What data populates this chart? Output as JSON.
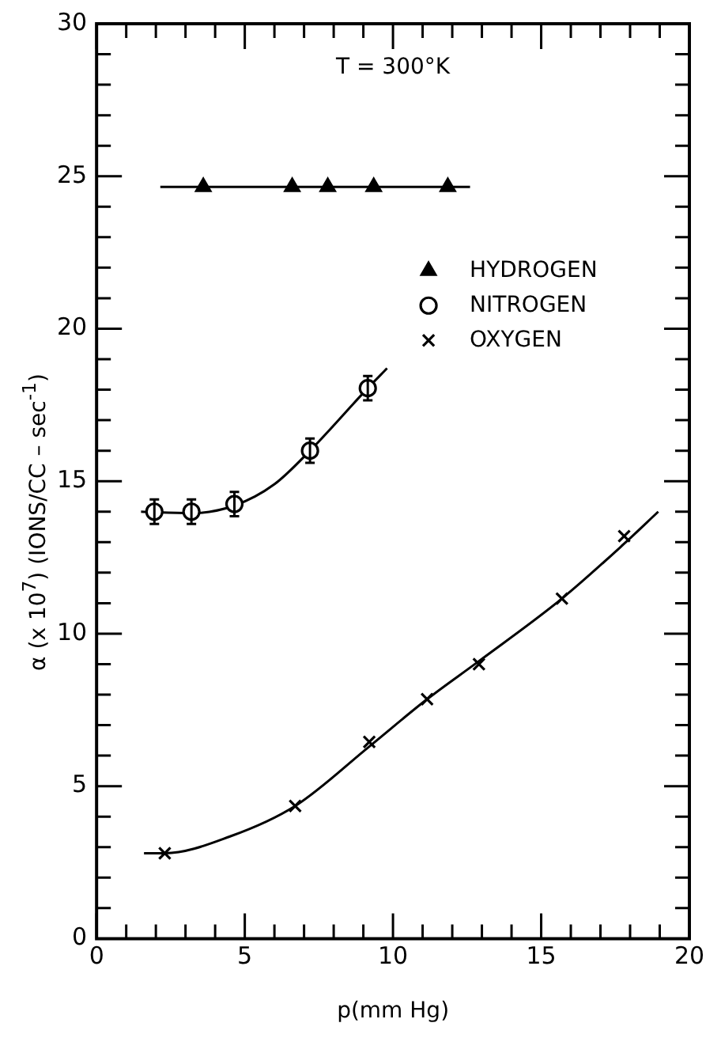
{
  "chart_data": {
    "type": "scatter",
    "xlabel": "p(mm Hg)",
    "ylabel": "α (x 10$^{7}$) (IONS/CC – sec$^{-1}$)",
    "annotations": [
      "T = 300°K"
    ],
    "xlim": [
      0,
      20
    ],
    "ylim": [
      0,
      30
    ],
    "xticks": [
      0,
      {
        "value": 1,
        "label": null
      },
      {
        "value": 2,
        "label": null
      },
      {
        "value": 3,
        "label": null
      },
      {
        "value": 4,
        "label": null
      },
      5,
      {
        "value": 6,
        "label": null
      },
      {
        "value": 7,
        "label": null
      },
      {
        "value": 8,
        "label": null
      },
      {
        "value": 9,
        "label": null
      },
      10,
      {
        "value": 11,
        "label": null
      },
      {
        "value": 12,
        "label": null
      },
      {
        "value": 13,
        "label": null
      },
      {
        "value": 14,
        "label": null
      },
      15,
      {
        "value": 16,
        "label": null
      },
      {
        "value": 17,
        "label": null
      },
      {
        "value": 18,
        "label": null
      },
      {
        "value": 19,
        "label": null
      },
      20
    ],
    "yticks": [
      0,
      {
        "value": 1,
        "label": null
      },
      {
        "value": 2,
        "label": null
      },
      {
        "value": 3,
        "label": null
      },
      {
        "value": 4,
        "label": null
      },
      5,
      {
        "value": 6,
        "label": null
      },
      {
        "value": 7,
        "label": null
      },
      {
        "value": 8,
        "label": null
      },
      {
        "value": 9,
        "label": null
      },
      10,
      {
        "value": 11,
        "label": null
      },
      {
        "value": 12,
        "label": null
      },
      {
        "value": 13,
        "label": null
      },
      {
        "value": 14,
        "label": null
      },
      15,
      {
        "value": 16,
        "label": null
      },
      {
        "value": 17,
        "label": null
      },
      {
        "value": 18,
        "label": null
      },
      {
        "value": 19,
        "label": null
      },
      20,
      {
        "value": 21,
        "label": null
      },
      {
        "value": 22,
        "label": null
      },
      {
        "value": 23,
        "label": null
      },
      {
        "value": 24,
        "label": null
      },
      25,
      {
        "value": 26,
        "label": null
      },
      {
        "value": 27,
        "label": null
      },
      {
        "value": 28,
        "label": null
      },
      {
        "value": 29,
        "label": null
      },
      30
    ],
    "grid": false,
    "legend": "right",
    "series": [
      {
        "name": "HYDROGEN",
        "type": "scatter",
        "marker": "triangle",
        "color": "#000000",
        "x": [
          3.6,
          6.6,
          7.8,
          9.35,
          11.85
        ],
        "values": [
          24.65,
          24.65,
          24.65,
          24.65,
          24.65
        ]
      },
      {
        "name": "NITROGEN",
        "type": "scatter",
        "marker": "circle",
        "color": "#000000",
        "x": [
          1.95,
          3.2,
          4.65,
          7.2,
          9.15
        ],
        "values": [
          14.0,
          14.0,
          14.25,
          16.0,
          18.05
        ],
        "errors": [
          0.4,
          0.4,
          0.4,
          0.4,
          0.4
        ]
      },
      {
        "name": "OXYGEN",
        "type": "scatter",
        "marker": "cross",
        "color": "#000000",
        "x": [
          2.3,
          6.7,
          9.2,
          11.15,
          12.9,
          15.7,
          17.8
        ],
        "values": [
          2.8,
          4.35,
          6.45,
          7.85,
          9.0,
          11.15,
          13.2
        ]
      },
      {
        "type": "line",
        "marker": "none",
        "color": "#000000",
        "x": [
          2.15,
          12.6
        ],
        "values": [
          24.65,
          24.65
        ]
      },
      {
        "type": "line",
        "marker": "none",
        "color": "#000000",
        "x": [
          1.5,
          3.2,
          4.65,
          6.0,
          7.2,
          9.15,
          9.8
        ],
        "values": [
          14.0,
          13.95,
          14.2,
          14.9,
          16.0,
          18.05,
          18.7
        ]
      },
      {
        "type": "line",
        "marker": "none",
        "color": "#000000",
        "x": [
          1.6,
          2.3,
          4.5,
          6.7,
          9.2,
          11.15,
          12.9,
          15.7,
          17.8,
          18.95
        ],
        "values": [
          2.8,
          2.8,
          3.35,
          4.35,
          6.3,
          7.85,
          9.1,
          11.15,
          12.95,
          14.0
        ]
      }
    ]
  }
}
